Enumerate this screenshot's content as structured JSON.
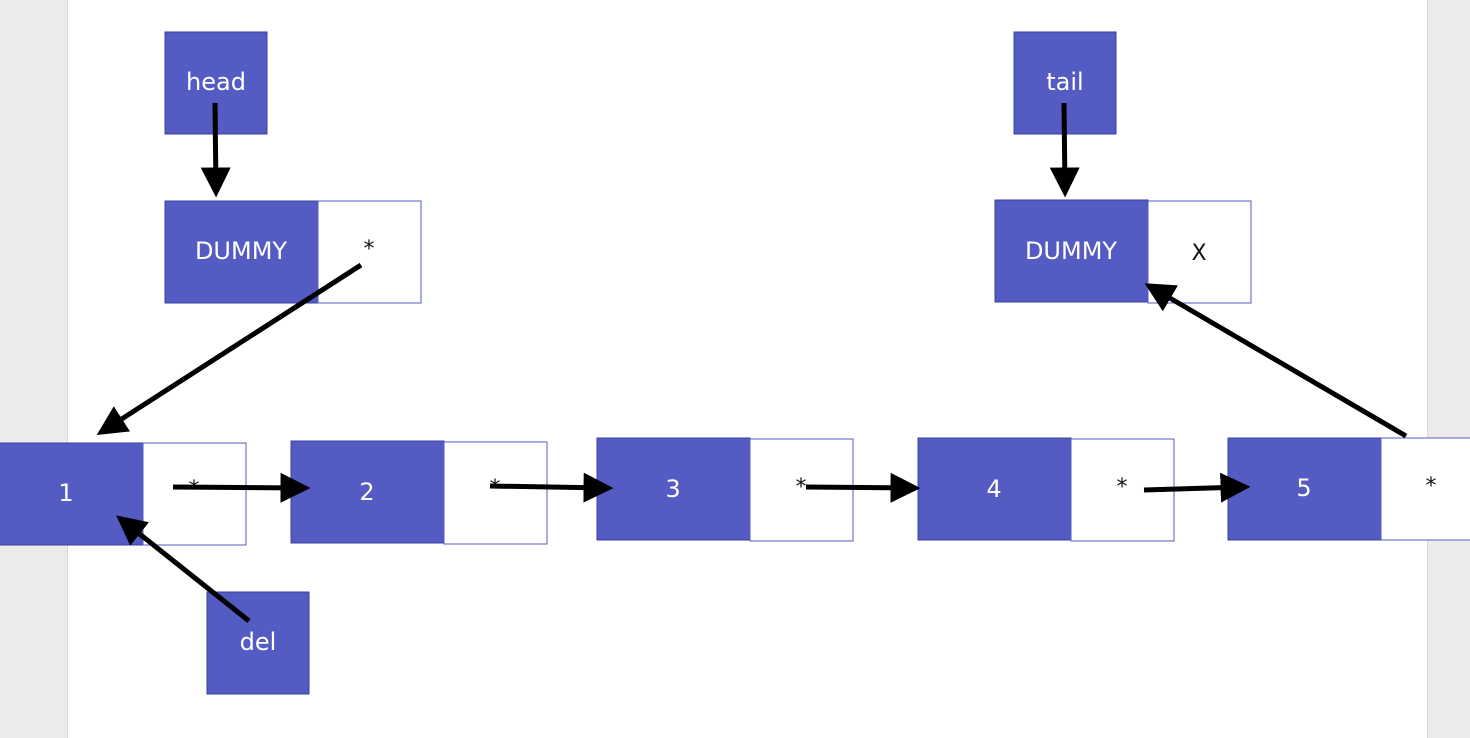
{
  "pointers": {
    "head": "head",
    "tail": "tail",
    "del": "del"
  },
  "dummy_head": {
    "label": "DUMMY",
    "ptr": "*"
  },
  "dummy_tail": {
    "label": "DUMMY",
    "ptr": "X"
  },
  "nodes": [
    {
      "value": "1",
      "ptr": "*"
    },
    {
      "value": "2",
      "ptr": "*"
    },
    {
      "value": "3",
      "ptr": "*"
    },
    {
      "value": "4",
      "ptr": "*"
    },
    {
      "value": "5",
      "ptr": "*"
    }
  ],
  "colors": {
    "node_fill": "#545bc2",
    "pointer_fill": "#ffffff",
    "arrow": "#000000"
  }
}
